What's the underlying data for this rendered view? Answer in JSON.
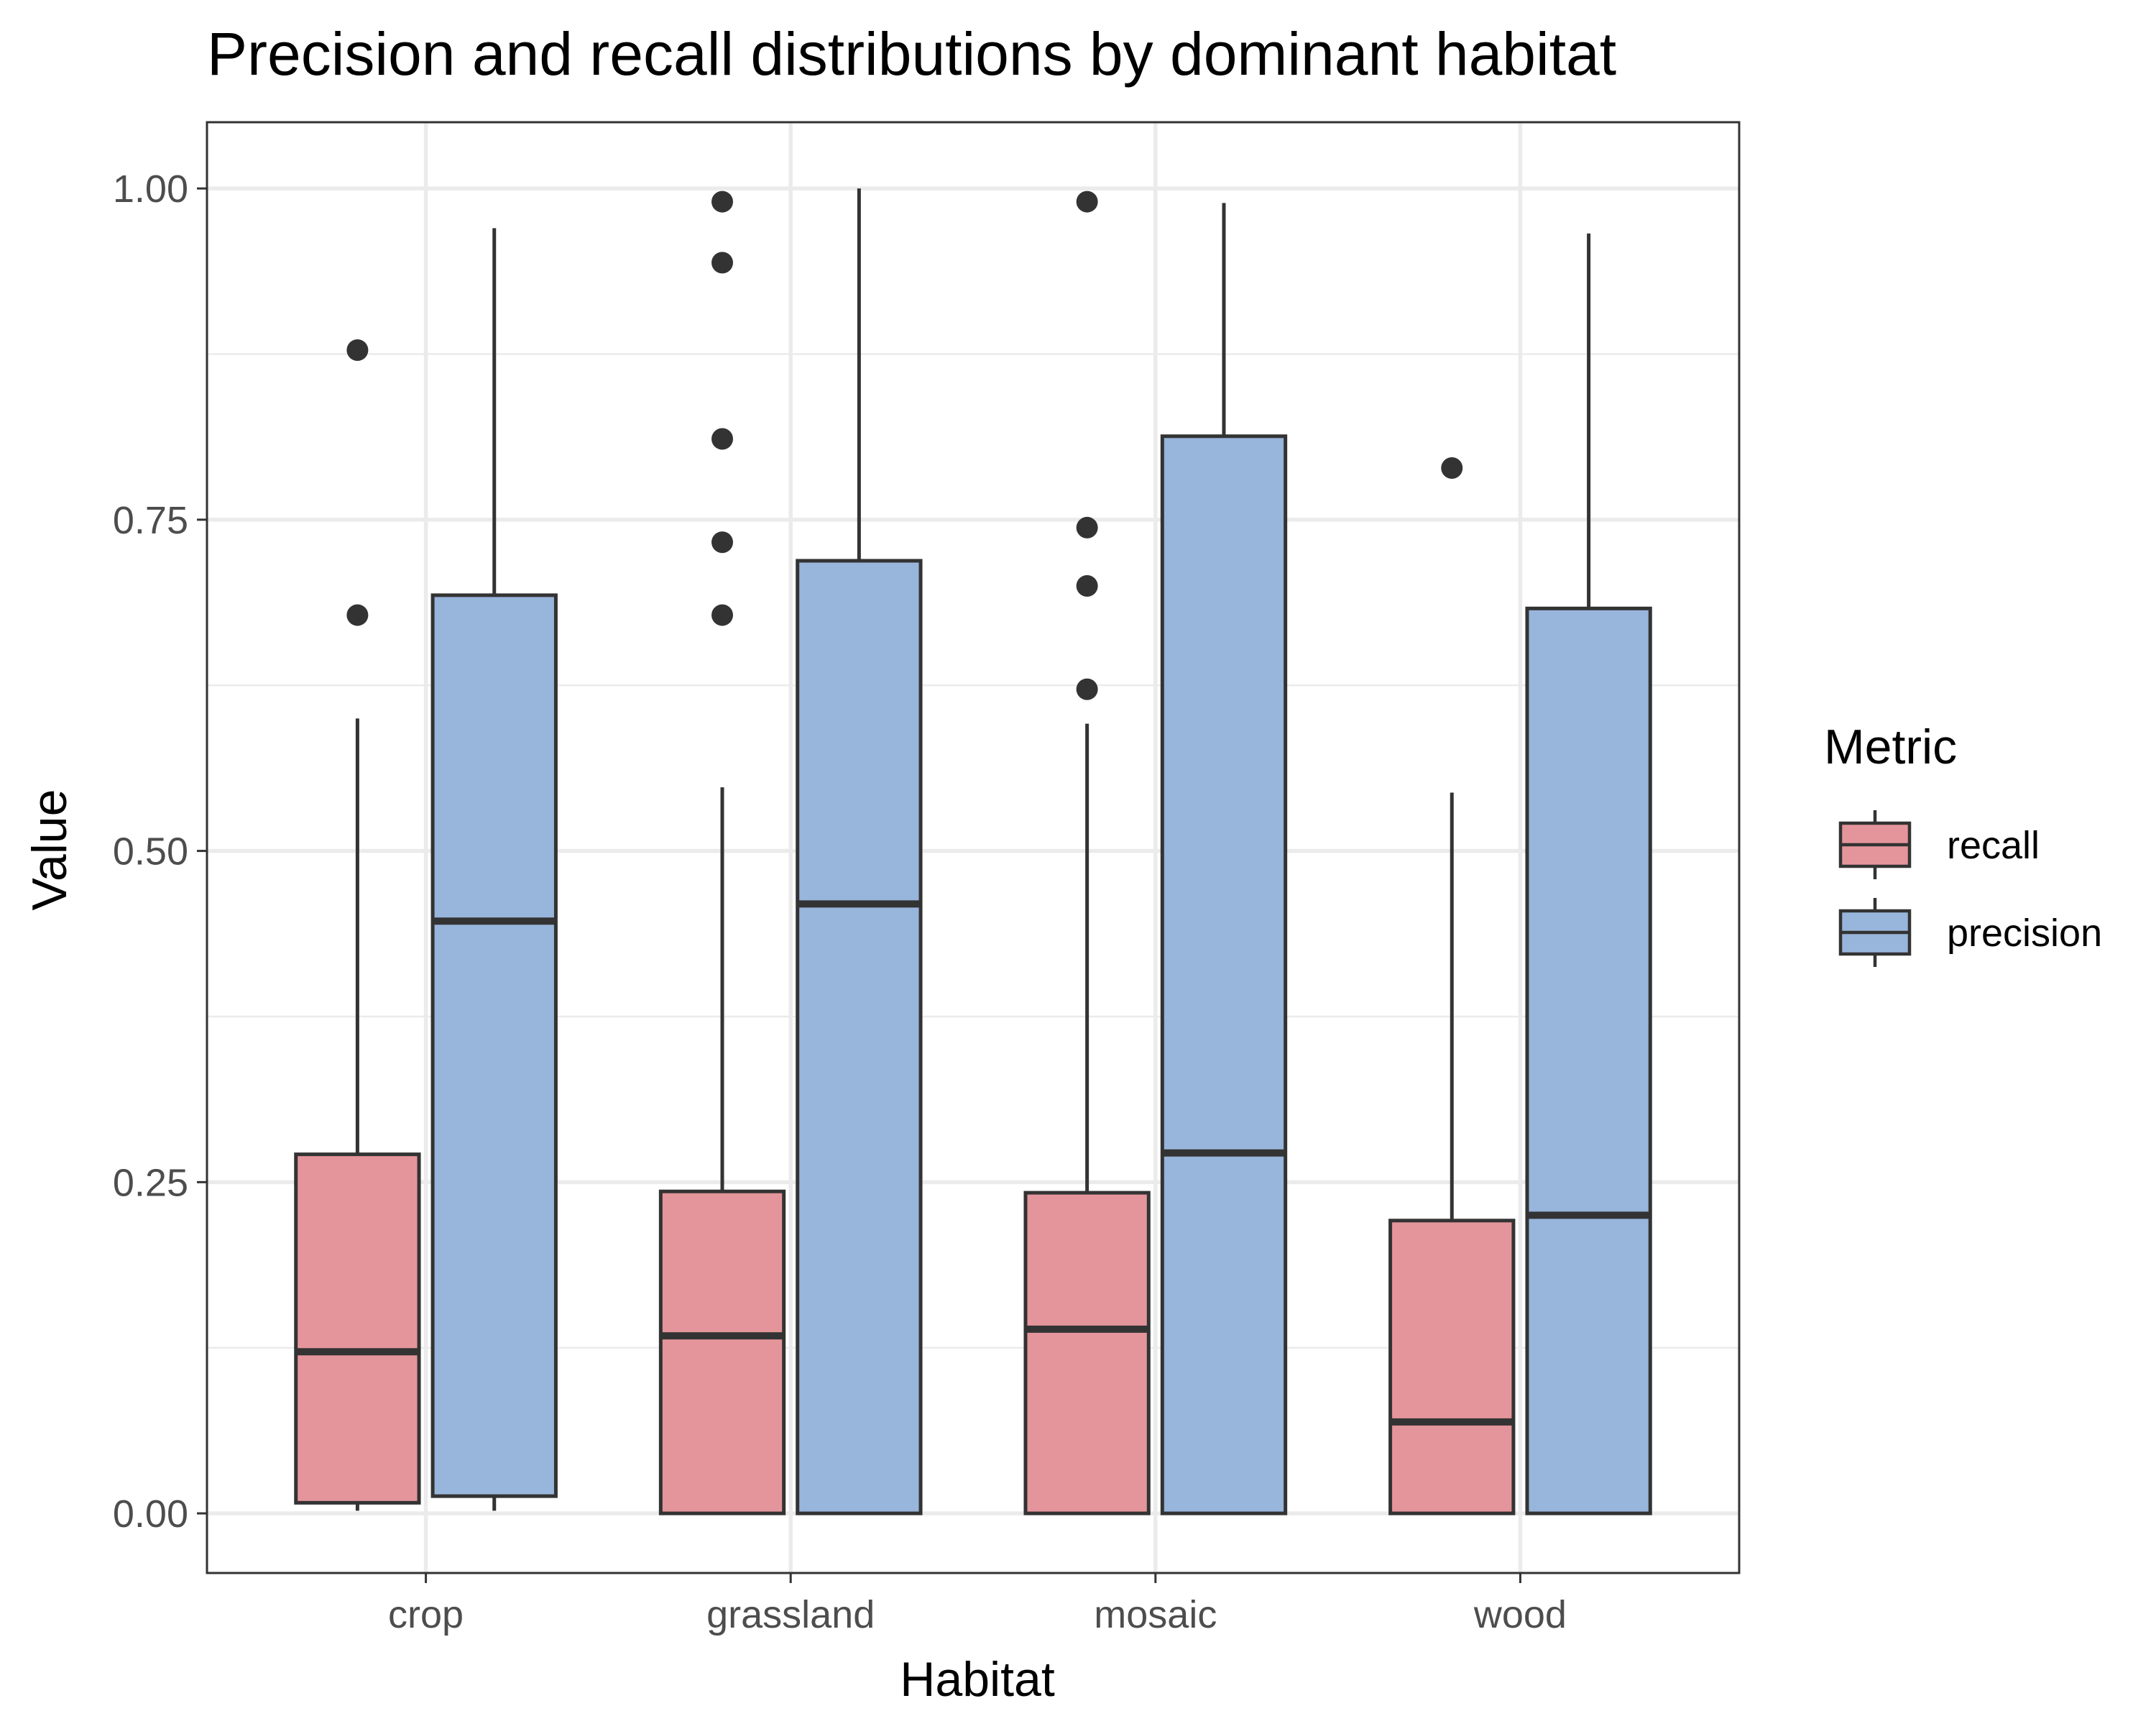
{
  "chart_data": {
    "type": "boxplot",
    "title": "Precision and recall distributions by dominant habitat",
    "xlabel": "Habitat",
    "ylabel": "Value",
    "ylim": [
      -0.045,
      1.05
    ],
    "y_ticks": [
      0.0,
      0.25,
      0.5,
      0.75,
      1.0
    ],
    "y_tick_labels": [
      "0.00",
      "0.25",
      "0.50",
      "0.75",
      "1.00"
    ],
    "categories": [
      "crop",
      "grassland",
      "mosaic",
      "wood"
    ],
    "grid": true,
    "legend": {
      "title": "Metric",
      "placement": "right"
    },
    "series": [
      {
        "name": "recall",
        "color": "#e4959b",
        "boxes": [
          {
            "category": "crop",
            "whisker_low": 0.002,
            "q1": 0.008,
            "median": 0.122,
            "q3": 0.271,
            "whisker_high": 0.6,
            "outliers": [
              0.878,
              0.678
            ]
          },
          {
            "category": "grassland",
            "whisker_low": 0.0,
            "q1": 0.0,
            "median": 0.134,
            "q3": 0.243,
            "whisker_high": 0.548,
            "outliers": [
              0.99,
              0.944,
              0.811,
              0.733,
              0.678
            ]
          },
          {
            "category": "mosaic",
            "whisker_low": 0.0,
            "q1": 0.0,
            "median": 0.139,
            "q3": 0.242,
            "whisker_high": 0.596,
            "outliers": [
              0.99,
              0.744,
              0.7,
              0.622
            ]
          },
          {
            "category": "wood",
            "whisker_low": 0.0,
            "q1": 0.0,
            "median": 0.069,
            "q3": 0.221,
            "whisker_high": 0.544,
            "outliers": [
              0.789
            ]
          }
        ]
      },
      {
        "name": "precision",
        "color": "#98b5db",
        "boxes": [
          {
            "category": "crop",
            "whisker_low": 0.002,
            "q1": 0.013,
            "median": 0.447,
            "q3": 0.693,
            "whisker_high": 0.97,
            "outliers": []
          },
          {
            "category": "grassland",
            "whisker_low": 0.0,
            "q1": 0.0,
            "median": 0.46,
            "q3": 0.719,
            "whisker_high": 1.0,
            "outliers": []
          },
          {
            "category": "mosaic",
            "whisker_low": 0.0,
            "q1": 0.0,
            "median": 0.272,
            "q3": 0.813,
            "whisker_high": 0.989,
            "outliers": []
          },
          {
            "category": "wood",
            "whisker_low": 0.0,
            "q1": 0.0,
            "median": 0.225,
            "q3": 0.683,
            "whisker_high": 0.966,
            "outliers": []
          }
        ]
      }
    ]
  }
}
